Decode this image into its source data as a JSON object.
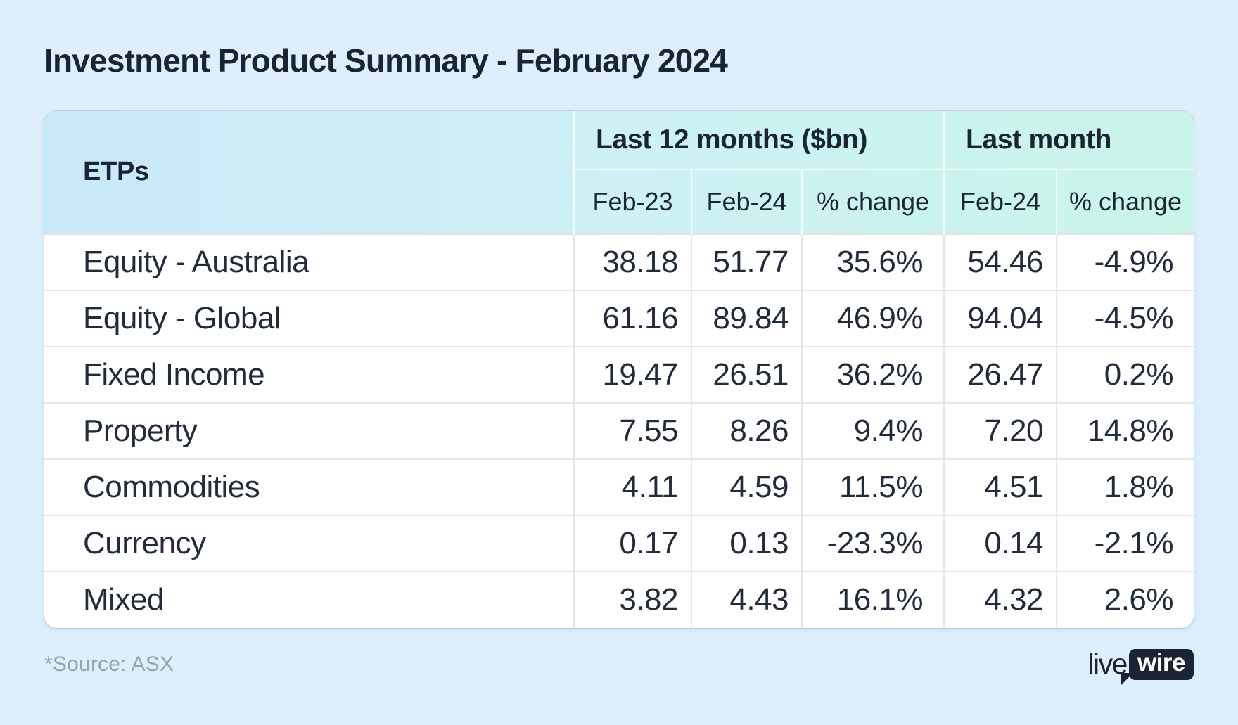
{
  "chart_data": {
    "type": "table",
    "title": "Investment Product Summary - February 2024",
    "corner_header": "ETPs",
    "column_groups": [
      {
        "label": "Last 12 months ($bn)",
        "columns": [
          "Feb-23",
          "Feb-24",
          "% change"
        ]
      },
      {
        "label": "Last month",
        "columns": [
          "Feb-24",
          "% change"
        ]
      }
    ],
    "rows": [
      {
        "label": "Equity - Australia",
        "values": [
          "38.18",
          "51.77",
          "35.6%",
          "54.46",
          "-4.9%"
        ]
      },
      {
        "label": "Equity - Global",
        "values": [
          "61.16",
          "89.84",
          "46.9%",
          "94.04",
          "-4.5%"
        ]
      },
      {
        "label": "Fixed Income",
        "values": [
          "19.47",
          "26.51",
          "36.2%",
          "26.47",
          "0.2%"
        ]
      },
      {
        "label": "Property",
        "values": [
          "7.55",
          "8.26",
          "9.4%",
          "7.20",
          "14.8%"
        ]
      },
      {
        "label": "Commodities",
        "values": [
          "4.11",
          "4.59",
          "11.5%",
          "4.51",
          "1.8%"
        ]
      },
      {
        "label": "Currency",
        "values": [
          "0.17",
          "0.13",
          "-23.3%",
          "0.14",
          "-2.1%"
        ]
      },
      {
        "label": "Mixed",
        "values": [
          "3.82",
          "4.43",
          "16.1%",
          "4.32",
          "2.6%"
        ]
      }
    ],
    "source_note": "*Source: ASX"
  },
  "footer": {
    "logo_text_plain": "live",
    "logo_text_boxed": "wire"
  },
  "colors": {
    "page_bg": "#deeffc",
    "header_gradient_left": "#c8e9f8",
    "header_gradient_right": "#c9f5e9",
    "text_navy": "#1b2433",
    "row_divider": "#e2e6ea",
    "source_text": "#90a4bd",
    "card_bg": "#ffffff"
  }
}
